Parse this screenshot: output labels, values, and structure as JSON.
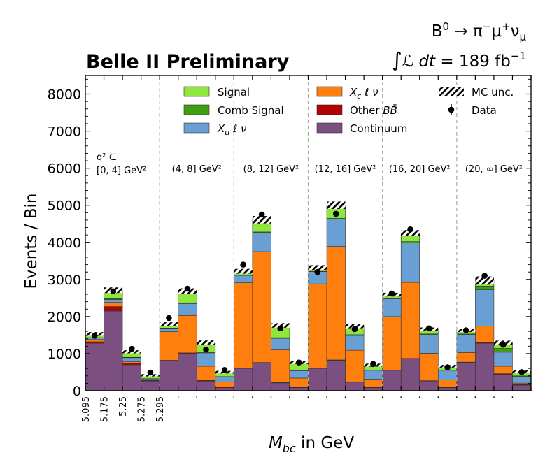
{
  "chart_data": {
    "type": "bar",
    "stacked": true,
    "title_left": "Belle II Preliminary",
    "process": "B^0 → π^- μ^+ ν_μ",
    "process_parts": {
      "a": "B",
      "a_sup": "0",
      "arrow": " → π",
      "b_sup": "−",
      "c": "μ",
      "c_sup": "+",
      "d": "ν",
      "d_sub": "μ"
    },
    "luminosity": "∫ℒ dt = 189 fb^-1",
    "lumi_parts": {
      "int": "∫",
      "expr": "ℒ dt",
      "eq": " = 189 fb",
      "sup": "−1"
    },
    "xlabel": "M_bc in GeV",
    "xlabel_parts": {
      "main": "M",
      "sub": "bc",
      "rest": " in GeV"
    },
    "ylabel": "Events / Bin",
    "ylim": [
      0,
      8500
    ],
    "yticks": [
      0,
      1000,
      2000,
      3000,
      4000,
      5000,
      6000,
      7000,
      8000
    ],
    "ytick_labels": [
      "0",
      "1000",
      "2000",
      "3000",
      "4000",
      "5000",
      "6000",
      "7000",
      "8000"
    ],
    "xtick_labels": [
      "5.095",
      "5.175",
      "5.25",
      "5.275",
      "5.295"
    ],
    "bins_per_region": 4,
    "regions": [
      {
        "label_line1": "q² ∈",
        "label_line2": "[0, 4] GeV²"
      },
      {
        "label_line1": "",
        "label_line2": "(4, 8] GeV²"
      },
      {
        "label_line1": "",
        "label_line2": "(8, 12] GeV²"
      },
      {
        "label_line1": "",
        "label_line2": "(12, 16] GeV²"
      },
      {
        "label_line1": "",
        "label_line2": "(16, 20] GeV²"
      },
      {
        "label_line1": "",
        "label_line2": "(20, ∞] GeV²"
      }
    ],
    "series": [
      {
        "name": "Continuum",
        "color": "#7b4f80",
        "values": [
          1280,
          2150,
          700,
          260,
          800,
          1000,
          260,
          80,
          600,
          750,
          210,
          80,
          600,
          820,
          230,
          80,
          550,
          860,
          260,
          80,
          760,
          1280,
          440,
          150
        ]
      },
      {
        "name": "Other BB̄",
        "color": "#b30000",
        "values": [
          40,
          120,
          40,
          10,
          20,
          20,
          20,
          20,
          10,
          10,
          10,
          10,
          10,
          10,
          10,
          10,
          10,
          10,
          10,
          10,
          10,
          20,
          20,
          15
        ]
      },
      {
        "name": "X_c ℓ ν",
        "color": "#ff7f0e",
        "values": [
          60,
          110,
          40,
          10,
          770,
          1010,
          380,
          140,
          2300,
          2990,
          880,
          250,
          2270,
          3060,
          850,
          220,
          1440,
          2050,
          740,
          200,
          260,
          440,
          200,
          40
        ]
      },
      {
        "name": "X_u ℓ ν",
        "color": "#6a9fd4",
        "values": [
          40,
          80,
          110,
          40,
          90,
          320,
          360,
          130,
          200,
          510,
          310,
          200,
          330,
          740,
          400,
          240,
          480,
          1070,
          500,
          260,
          480,
          980,
          380,
          180
        ]
      },
      {
        "name": "Comb Signal",
        "color": "#3f9e12",
        "values": [
          10,
          20,
          10,
          5,
          10,
          20,
          20,
          10,
          10,
          20,
          20,
          10,
          10,
          20,
          20,
          10,
          10,
          30,
          20,
          10,
          20,
          100,
          100,
          40
        ]
      },
      {
        "name": "Signal",
        "color": "#8fe63c",
        "values": [
          100,
          230,
          150,
          90,
          100,
          320,
          260,
          120,
          100,
          330,
          330,
          210,
          100,
          350,
          230,
          130,
          100,
          230,
          130,
          100,
          100,
          150,
          150,
          100
        ]
      }
    ],
    "mc_unc": {
      "name": "MC unc.",
      "values": [
        100,
        150,
        80,
        60,
        110,
        140,
        110,
        70,
        130,
        200,
        120,
        80,
        130,
        200,
        110,
        80,
        100,
        160,
        90,
        70,
        90,
        220,
        120,
        70
      ]
    },
    "data_series": {
      "name": "Data",
      "values": [
        1480,
        2680,
        1130,
        490,
        1960,
        2750,
        1110,
        560,
        3400,
        4750,
        1680,
        760,
        3200,
        4770,
        1660,
        720,
        2620,
        4350,
        1680,
        630,
        1630,
        3100,
        1240,
        500
      ]
    },
    "legend_col1": [
      "Signal",
      "Comb Signal",
      "X_u ℓ ν"
    ],
    "legend_col2": [
      "X_c ℓ ν",
      "Other BB̄",
      "Continuum"
    ],
    "legend_col3": [
      "MC unc.",
      "Data"
    ]
  }
}
